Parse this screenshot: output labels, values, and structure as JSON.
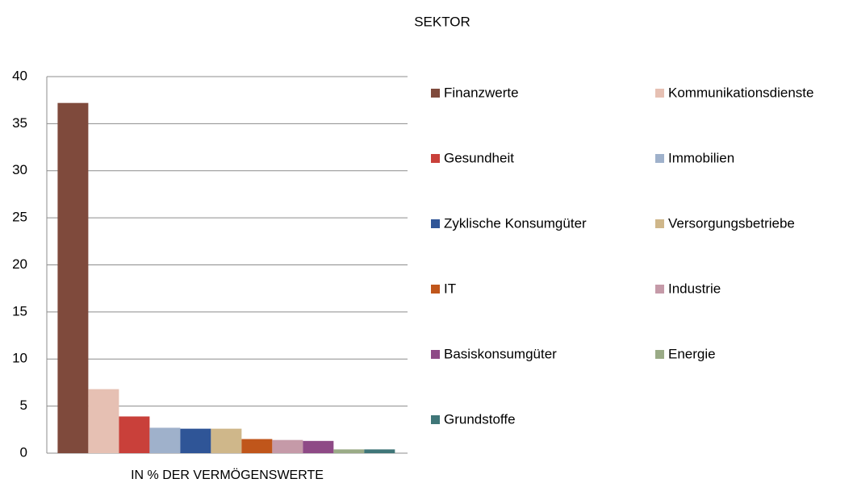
{
  "chart_data": {
    "type": "bar",
    "title": "SEKTOR",
    "categories": [
      "IN % DER VERMÖGENSWERTE"
    ],
    "series": [
      {
        "name": "Finanzwerte",
        "color": "#7f4a3c",
        "values": [
          37.2
        ]
      },
      {
        "name": "Kommunikationsdienste",
        "color": "#e6c0b3",
        "values": [
          6.8
        ]
      },
      {
        "name": "Gesundheit",
        "color": "#c9403a",
        "values": [
          3.9
        ]
      },
      {
        "name": "Immobilien",
        "color": "#9fb1cb",
        "values": [
          2.7
        ]
      },
      {
        "name": "Zyklische Konsumgüter",
        "color": "#2f5597",
        "values": [
          2.6
        ]
      },
      {
        "name": "Versorgungsbetriebe",
        "color": "#cfb78a",
        "values": [
          2.6
        ]
      },
      {
        "name": "IT",
        "color": "#c0561b",
        "values": [
          1.5
        ]
      },
      {
        "name": "Industrie",
        "color": "#c59aa8",
        "values": [
          1.4
        ]
      },
      {
        "name": "Basiskonsumgüter",
        "color": "#8e4a86",
        "values": [
          1.3
        ]
      },
      {
        "name": "Energie",
        "color": "#9aab86",
        "values": [
          0.4
        ]
      },
      {
        "name": "Grundstoffe",
        "color": "#3f7678",
        "values": [
          0.4
        ]
      }
    ],
    "ylim": [
      0,
      40
    ],
    "yticks": [
      0,
      5,
      10,
      15,
      20,
      25,
      30,
      35,
      40
    ],
    "grid": true,
    "legend": "right"
  }
}
